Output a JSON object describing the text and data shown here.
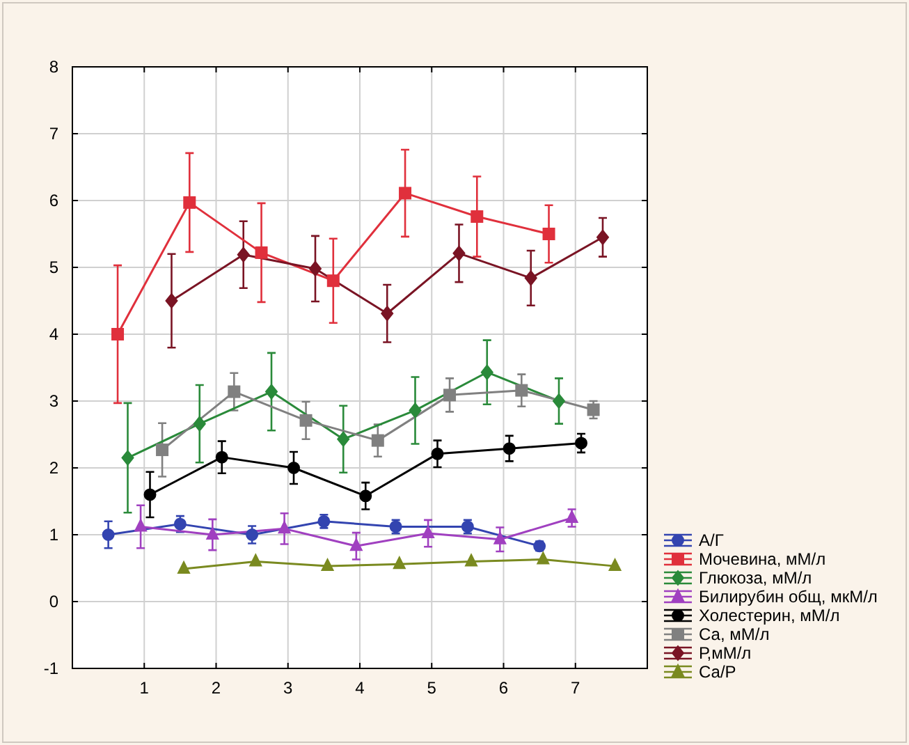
{
  "chart_data": {
    "type": "line",
    "xlim": [
      0,
      8
    ],
    "xticks": [
      {
        "value": 0,
        "label": null
      },
      1,
      2,
      3,
      4,
      5,
      6,
      7,
      {
        "value": 8,
        "label": null
      }
    ],
    "ylim": [
      -1,
      8
    ],
    "yticks": [
      -1,
      0,
      1,
      2,
      3,
      4,
      5,
      6,
      7,
      8
    ],
    "grid": true,
    "legend": "bottom right",
    "series": [
      {
        "name": "А/Г",
        "color": "#3344b0",
        "marker": "circle",
        "x": [
          0.5,
          1.5,
          2.5,
          3.5,
          4.5,
          5.5,
          6.5
        ],
        "values": [
          1.0,
          1.16,
          1.0,
          1.2,
          1.12,
          1.12,
          0.83
        ],
        "errors": [
          0.2,
          0.12,
          0.13,
          0.1,
          0.1,
          0.1,
          0.07
        ]
      },
      {
        "name": "Мочевина, мМ/л",
        "color": "#e0303c",
        "marker": "square",
        "x": [
          0.63,
          1.63,
          2.63,
          3.63,
          4.63,
          5.63,
          6.63
        ],
        "values": [
          4.0,
          5.97,
          5.22,
          4.8,
          6.11,
          5.76,
          5.5
        ],
        "errors": [
          1.03,
          0.74,
          0.74,
          0.63,
          0.65,
          0.6,
          0.43
        ]
      },
      {
        "name": "Глюкоза, мМ/л",
        "color": "#2a8a3a",
        "marker": "diamond",
        "x": [
          0.77,
          1.77,
          2.77,
          3.77,
          4.77,
          5.77,
          6.77
        ],
        "values": [
          2.15,
          2.66,
          3.14,
          2.43,
          2.86,
          3.43,
          3.0
        ],
        "errors": [
          0.82,
          0.58,
          0.58,
          0.5,
          0.5,
          0.48,
          0.34
        ]
      },
      {
        "name": "Билирубин общ, мкМ/л",
        "color": "#a040c0",
        "marker": "triangle",
        "x": [
          0.95,
          1.95,
          2.95,
          3.95,
          4.95,
          5.95,
          6.95
        ],
        "values": [
          1.12,
          1.0,
          1.09,
          0.83,
          1.02,
          0.93,
          1.25
        ],
        "errors": [
          0.32,
          0.23,
          0.23,
          0.2,
          0.2,
          0.18,
          0.13
        ]
      },
      {
        "name": "Холестерин, мМ/л",
        "color": "#000000",
        "marker": "circle",
        "x": [
          1.08,
          2.08,
          3.08,
          4.08,
          5.08,
          6.08,
          7.08
        ],
        "values": [
          1.6,
          2.16,
          2.0,
          1.58,
          2.21,
          2.29,
          2.37
        ],
        "errors": [
          0.34,
          0.24,
          0.24,
          0.2,
          0.2,
          0.19,
          0.14
        ]
      },
      {
        "name": "Са, мМ/л",
        "color": "#808080",
        "marker": "square",
        "x": [
          1.25,
          2.25,
          3.25,
          4.25,
          5.25,
          6.25,
          7.25
        ],
        "values": [
          2.27,
          3.14,
          2.71,
          2.41,
          3.09,
          3.16,
          2.87
        ],
        "errors": [
          0.4,
          0.28,
          0.28,
          0.24,
          0.25,
          0.24,
          0.13
        ]
      },
      {
        "name": "Р,мМ/л",
        "color": "#7a1424",
        "marker": "diamond",
        "x": [
          1.38,
          2.38,
          3.38,
          4.38,
          5.38,
          6.38,
          7.38
        ],
        "values": [
          4.5,
          5.19,
          4.98,
          4.31,
          5.21,
          4.84,
          5.45
        ],
        "errors": [
          0.7,
          0.5,
          0.49,
          0.43,
          0.43,
          0.41,
          0.29
        ]
      },
      {
        "name": "Са/Р",
        "color": "#7a8a20",
        "marker": "triangle",
        "x": [
          1.55,
          2.55,
          3.55,
          4.55,
          5.55,
          6.55,
          7.55
        ],
        "values": [
          0.49,
          0.6,
          0.53,
          0.56,
          0.6,
          0.63,
          0.53
        ]
      }
    ]
  }
}
